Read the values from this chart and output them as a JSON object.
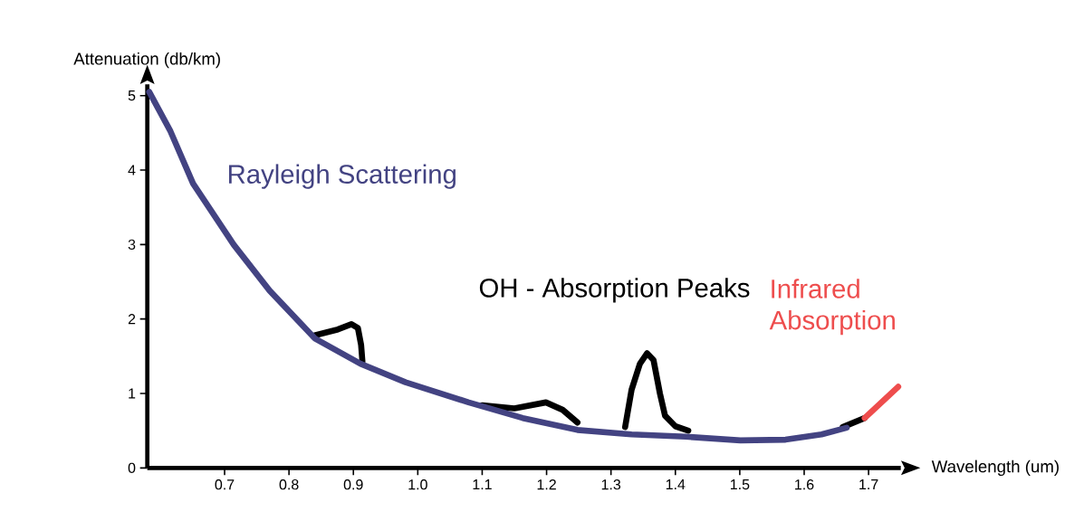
{
  "chart_data": {
    "type": "line",
    "xlabel": "Wavelength (um)",
    "ylabel": "Attenuation (db/km)",
    "xlim": [
      0.58,
      1.75
    ],
    "ylim": [
      0,
      5.15
    ],
    "xticks": [
      0.7,
      0.8,
      0.9,
      {
        "value": 1.0,
        "label": "1.0"
      },
      1.1,
      1.2,
      1.3,
      1.4,
      1.5,
      1.6,
      1.7
    ],
    "yticks": [
      0,
      1,
      2,
      3,
      4,
      5
    ],
    "marker": "none",
    "line_style": "solid",
    "series": [
      {
        "name": "OH - Absorption Peaks",
        "color": "#000000",
        "x": [
          0.84,
          0.876,
          0.897,
          0.907,
          0.912,
          0.914,
          0.95,
          1.1,
          1.15,
          1.199,
          1.225,
          1.248,
          1.3,
          1.322,
          1.332,
          1.345,
          1.356,
          1.366,
          1.376,
          1.384,
          1.4,
          1.42,
          1.45,
          1.66,
          1.694
        ],
        "values": [
          1.78,
          1.86,
          1.93,
          1.88,
          1.65,
          1.43,
          null,
          0.84,
          0.8,
          0.88,
          0.78,
          0.61,
          null,
          0.55,
          1.05,
          1.4,
          1.54,
          1.45,
          1.0,
          0.7,
          0.56,
          0.5,
          null,
          0.55,
          0.67
        ]
      },
      {
        "name": "Rayleigh Scattering",
        "color": "#434382",
        "x": [
          0.583,
          0.616,
          0.651,
          0.714,
          0.77,
          0.84,
          0.911,
          0.981,
          1.079,
          1.163,
          1.248,
          1.332,
          1.416,
          1.501,
          1.571,
          1.627,
          1.666
        ],
        "values": [
          5.05,
          4.52,
          3.82,
          3.0,
          2.38,
          1.74,
          1.4,
          1.15,
          0.88,
          0.67,
          0.51,
          0.45,
          0.42,
          0.37,
          0.38,
          0.45,
          0.54
        ]
      },
      {
        "name": "Infrared Absorption",
        "color": "#ee4d4d",
        "x": [
          1.694,
          1.746
        ],
        "values": [
          0.67,
          1.09
        ]
      }
    ]
  }
}
